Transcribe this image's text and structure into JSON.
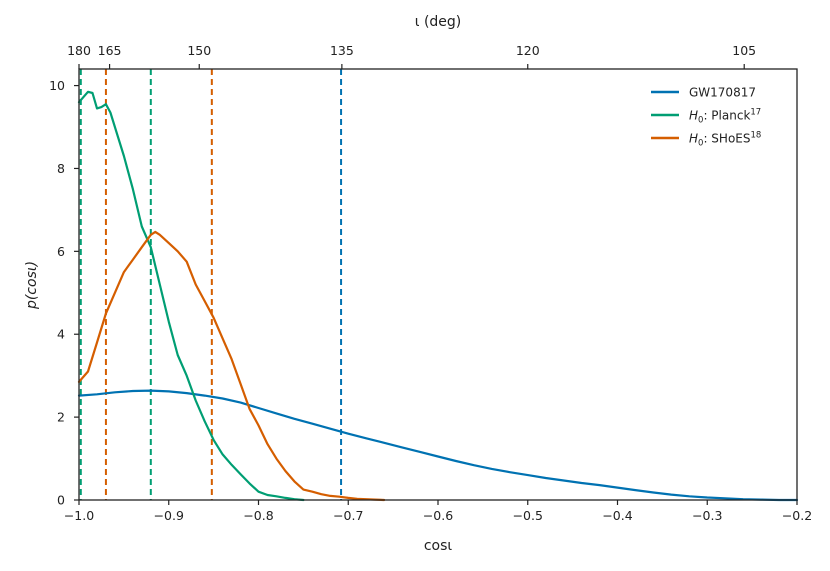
{
  "chart_data": {
    "type": "line",
    "xlabel": "cosι",
    "ylabel": "p(cosι)",
    "top_xlabel": "ι (deg)",
    "xlim": [
      -1.0,
      -0.2
    ],
    "ylim": [
      0,
      10.4
    ],
    "xticks": [
      -1.0,
      -0.9,
      -0.8,
      -0.7,
      -0.6,
      -0.5,
      -0.4,
      -0.3,
      -0.2
    ],
    "xtick_labels": [
      "−1.0",
      "−0.9",
      "−0.8",
      "−0.7",
      "−0.6",
      "−0.5",
      "−0.4",
      "−0.3",
      "−0.2"
    ],
    "yticks": [
      0,
      2,
      4,
      6,
      8,
      10
    ],
    "ytick_labels": [
      "0",
      "2",
      "4",
      "6",
      "8",
      "10"
    ],
    "top_ticks_deg": [
      180,
      165,
      150,
      135,
      120,
      105
    ],
    "top_tick_labels": [
      "180",
      "165",
      "150",
      "135",
      "120",
      "105"
    ],
    "grid": false,
    "legend_position": "top-right",
    "series": [
      {
        "name": "GW170817",
        "color": "#0072b2",
        "x": [
          -1.0,
          -0.98,
          -0.96,
          -0.94,
          -0.92,
          -0.9,
          -0.88,
          -0.86,
          -0.84,
          -0.82,
          -0.8,
          -0.78,
          -0.76,
          -0.74,
          -0.72,
          -0.7,
          -0.68,
          -0.66,
          -0.64,
          -0.62,
          -0.6,
          -0.58,
          -0.56,
          -0.54,
          -0.52,
          -0.5,
          -0.48,
          -0.46,
          -0.44,
          -0.42,
          -0.4,
          -0.38,
          -0.36,
          -0.34,
          -0.32,
          -0.3,
          -0.28,
          -0.26,
          -0.24,
          -0.22,
          -0.2
        ],
        "y": [
          2.52,
          2.55,
          2.6,
          2.63,
          2.64,
          2.62,
          2.58,
          2.52,
          2.45,
          2.35,
          2.22,
          2.09,
          1.96,
          1.84,
          1.72,
          1.6,
          1.49,
          1.38,
          1.27,
          1.16,
          1.05,
          0.94,
          0.84,
          0.75,
          0.67,
          0.6,
          0.53,
          0.47,
          0.41,
          0.36,
          0.3,
          0.24,
          0.18,
          0.13,
          0.09,
          0.06,
          0.04,
          0.02,
          0.01,
          0.0,
          0.0
        ]
      },
      {
        "name": "H0: Planck17",
        "label_main": "H",
        "label_sub": "0",
        "label_text": ": Planck",
        "label_sup": "17",
        "color": "#009e73",
        "x": [
          -1.0,
          -0.99,
          -0.985,
          -0.98,
          -0.975,
          -0.97,
          -0.965,
          -0.96,
          -0.95,
          -0.94,
          -0.93,
          -0.92,
          -0.91,
          -0.9,
          -0.89,
          -0.88,
          -0.87,
          -0.86,
          -0.85,
          -0.84,
          -0.83,
          -0.82,
          -0.81,
          -0.8,
          -0.79,
          -0.78,
          -0.77,
          -0.76,
          -0.75
        ],
        "y": [
          9.6,
          9.85,
          9.82,
          9.45,
          9.48,
          9.55,
          9.35,
          9.0,
          8.3,
          7.5,
          6.6,
          6.1,
          5.2,
          4.3,
          3.5,
          3.0,
          2.4,
          1.9,
          1.45,
          1.1,
          0.85,
          0.62,
          0.4,
          0.2,
          0.12,
          0.09,
          0.05,
          0.02,
          0.0
        ]
      },
      {
        "name": "H0: SHoES18",
        "label_main": "H",
        "label_sub": "0",
        "label_text": ": SHoES",
        "label_sup": "18",
        "color": "#d55e00",
        "x": [
          -1.0,
          -0.99,
          -0.98,
          -0.97,
          -0.96,
          -0.95,
          -0.94,
          -0.93,
          -0.92,
          -0.915,
          -0.91,
          -0.905,
          -0.9,
          -0.89,
          -0.88,
          -0.87,
          -0.86,
          -0.85,
          -0.84,
          -0.83,
          -0.82,
          -0.81,
          -0.8,
          -0.79,
          -0.78,
          -0.77,
          -0.76,
          -0.75,
          -0.74,
          -0.73,
          -0.72,
          -0.71,
          -0.7,
          -0.69,
          -0.68,
          -0.67,
          -0.66
        ],
        "y": [
          2.85,
          3.1,
          3.8,
          4.5,
          5.0,
          5.5,
          5.8,
          6.1,
          6.4,
          6.47,
          6.4,
          6.3,
          6.2,
          6.0,
          5.75,
          5.2,
          4.8,
          4.4,
          3.9,
          3.4,
          2.8,
          2.2,
          1.8,
          1.35,
          1.0,
          0.7,
          0.45,
          0.25,
          0.2,
          0.14,
          0.1,
          0.08,
          0.05,
          0.03,
          0.02,
          0.01,
          0.0
        ]
      }
    ],
    "vlines": [
      {
        "x": -0.998,
        "color": "#009e73",
        "series": "H0: Planck17"
      },
      {
        "x": -0.92,
        "color": "#009e73",
        "series": "H0: Planck17"
      },
      {
        "x": -0.97,
        "color": "#d55e00",
        "series": "H0: SHoES18"
      },
      {
        "x": -0.852,
        "color": "#d55e00",
        "series": "H0: SHoES18"
      },
      {
        "x": -0.708,
        "color": "#0072b2",
        "series": "GW170817"
      }
    ]
  }
}
